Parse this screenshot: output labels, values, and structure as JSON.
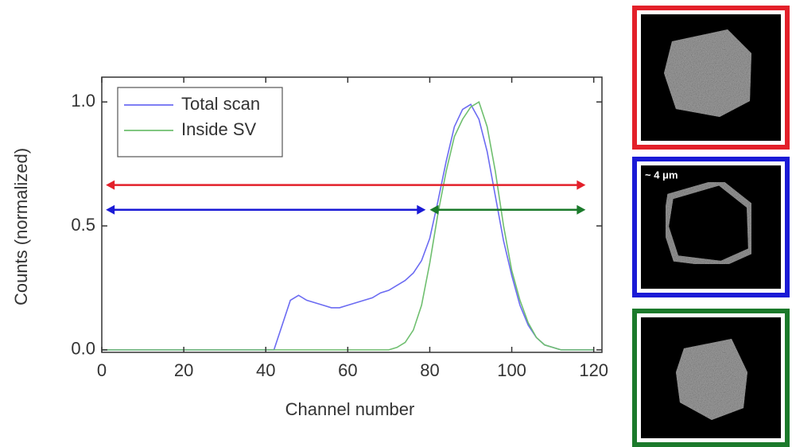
{
  "chart_data": {
    "type": "line",
    "xlabel": "Channel number",
    "ylabel": "Counts (normalized)",
    "x": [
      0,
      40,
      42,
      44,
      46,
      48,
      50,
      52,
      54,
      56,
      58,
      60,
      62,
      64,
      66,
      68,
      70,
      72,
      74,
      76,
      78,
      80,
      82,
      84,
      86,
      88,
      90,
      92,
      94,
      96,
      98,
      100,
      102,
      104,
      106,
      108,
      110,
      112,
      114,
      116,
      120
    ],
    "series": [
      {
        "name": "Total scan",
        "color": "#6b6bf2",
        "values": [
          0,
          0,
          0,
          0.1,
          0.2,
          0.22,
          0.2,
          0.19,
          0.18,
          0.17,
          0.17,
          0.18,
          0.19,
          0.2,
          0.21,
          0.23,
          0.24,
          0.26,
          0.28,
          0.31,
          0.36,
          0.45,
          0.6,
          0.76,
          0.9,
          0.97,
          0.99,
          0.93,
          0.8,
          0.62,
          0.44,
          0.3,
          0.18,
          0.1,
          0.05,
          0.02,
          0.01,
          0,
          0,
          0,
          0
        ]
      },
      {
        "name": "Inside SV",
        "color": "#6fbf6f",
        "values": [
          0,
          0,
          0,
          0,
          0,
          0,
          0,
          0,
          0,
          0,
          0,
          0,
          0,
          0,
          0,
          0,
          0,
          0.01,
          0.03,
          0.08,
          0.18,
          0.35,
          0.55,
          0.72,
          0.86,
          0.93,
          0.98,
          1.0,
          0.9,
          0.72,
          0.5,
          0.32,
          0.2,
          0.11,
          0.05,
          0.02,
          0.01,
          0,
          0,
          0,
          0
        ]
      }
    ],
    "arrows": [
      {
        "color": "#e3202a",
        "x": [
          1,
          118
        ],
        "y": 0.665
      },
      {
        "color": "#1a1ad6",
        "x": [
          1,
          79
        ],
        "y": 0.565
      },
      {
        "color": "#1b7a2b",
        "x": [
          80,
          118
        ],
        "y": 0.565
      }
    ],
    "xlim": [
      0,
      122
    ],
    "ylim": [
      -0.01,
      1.1
    ],
    "xticks": [
      0,
      20,
      40,
      60,
      80,
      100,
      120
    ],
    "yticks": [
      {
        "value": 0,
        "label": "0.0"
      },
      0.5,
      {
        "value": 1,
        "label": "1.0"
      }
    ],
    "legend": "upper left",
    "panels": [
      {
        "frame": "#e3202a"
      },
      {
        "frame": "#1a1ad6",
        "label": "~ 4 μm"
      },
      {
        "frame": "#1b7a2b"
      }
    ]
  }
}
